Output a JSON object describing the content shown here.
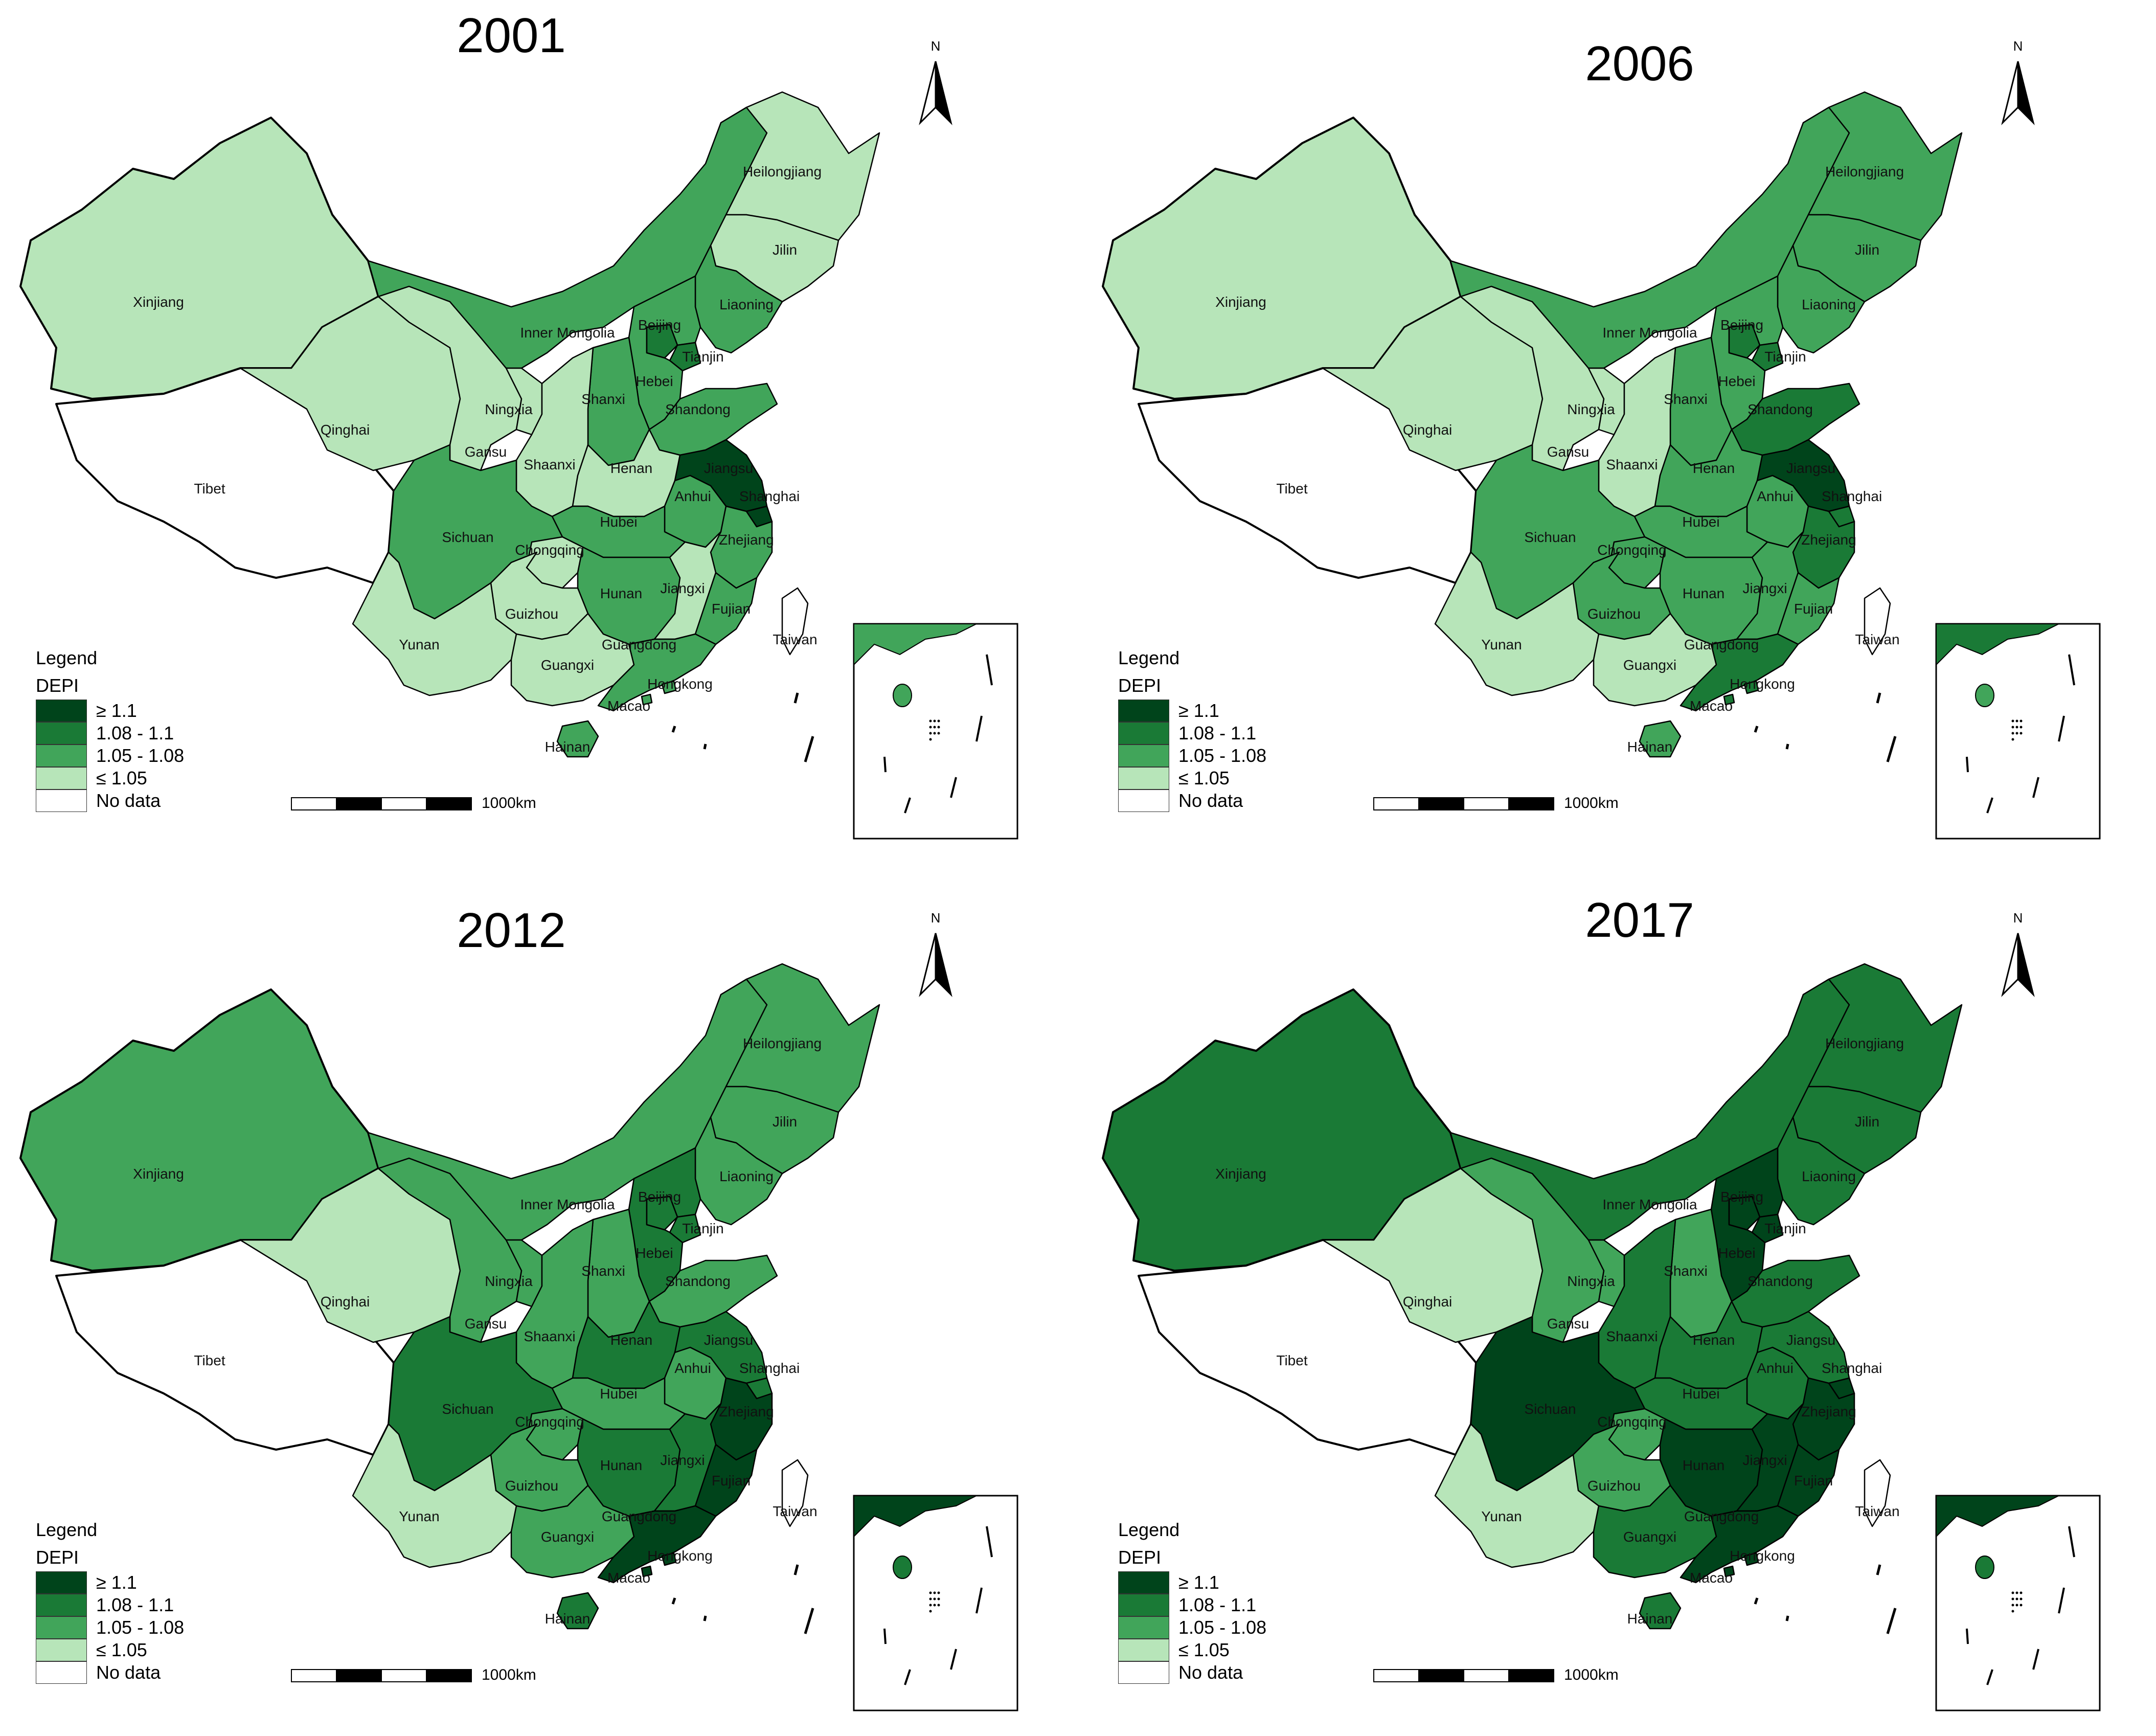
{
  "colors": {
    "c1": "#00441b",
    "c2": "#1a7a36",
    "c3": "#41a55a",
    "c4": "#b7e5b9",
    "nodata": "#ffffff",
    "stroke": "#000000"
  },
  "legend": {
    "title": "Legend",
    "subtitle": "DEPI",
    "classes": [
      {
        "label": "≥ 1.1",
        "class": "c1"
      },
      {
        "label": "1.08 - 1.1",
        "class": "c2"
      },
      {
        "label": "1.05 - 1.08",
        "class": "c3"
      },
      {
        "label": "≤ 1.05",
        "class": "c4"
      },
      {
        "label": "No data",
        "class": "nodata"
      }
    ]
  },
  "scale_label": "1000km",
  "north_label": "N",
  "provinces": [
    "Heilongjiang",
    "Jilin",
    "Liaoning",
    "Inner Mongolia",
    "Beijing",
    "Tianjin",
    "Hebei",
    "Shanxi",
    "Shandong",
    "Xinjiang",
    "Qinghai",
    "Tibet",
    "Ningxia",
    "Gansu",
    "Shaanxi",
    "Henan",
    "Jiangsu",
    "Anhui",
    "Shanghai",
    "Hubei",
    "Sichuan",
    "Chongqing",
    "Zhejiang",
    "Hunan",
    "Jiangxi",
    "Fujian",
    "Guizhou",
    "Yunan",
    "Guangxi",
    "Guangdong",
    "Taiwan",
    "Hongkong",
    "Macao",
    "Hainan"
  ],
  "panels": [
    {
      "year": "2001",
      "classes": {
        "Heilongjiang": "c4",
        "Jilin": "c4",
        "Liaoning": "c3",
        "Inner Mongolia": "c3",
        "Beijing": "c2",
        "Tianjin": "c2",
        "Hebei": "c3",
        "Shanxi": "c3",
        "Shandong": "c3",
        "Xinjiang": "c4",
        "Qinghai": "c4",
        "Tibet": "nodata",
        "Ningxia": "c4",
        "Gansu": "c4",
        "Shaanxi": "c4",
        "Henan": "c4",
        "Jiangsu": "c1",
        "Anhui": "c3",
        "Shanghai": "c1",
        "Hubei": "c3",
        "Sichuan": "c3",
        "Chongqing": "c4",
        "Zhejiang": "c3",
        "Hunan": "c3",
        "Jiangxi": "c4",
        "Fujian": "c3",
        "Guizhou": "c4",
        "Yunan": "c4",
        "Guangxi": "c4",
        "Guangdong": "c3",
        "Taiwan": "nodata",
        "Hongkong": "c3",
        "Macao": "c3",
        "Hainan": "c3"
      }
    },
    {
      "year": "2006",
      "classes": {
        "Heilongjiang": "c3",
        "Jilin": "c3",
        "Liaoning": "c3",
        "Inner Mongolia": "c3",
        "Beijing": "c2",
        "Tianjin": "c2",
        "Hebei": "c3",
        "Shanxi": "c3",
        "Shandong": "c2",
        "Xinjiang": "c4",
        "Qinghai": "c4",
        "Tibet": "nodata",
        "Ningxia": "c4",
        "Gansu": "c4",
        "Shaanxi": "c4",
        "Henan": "c3",
        "Jiangsu": "c1",
        "Anhui": "c3",
        "Shanghai": "c2",
        "Hubei": "c3",
        "Sichuan": "c3",
        "Chongqing": "c3",
        "Zhejiang": "c2",
        "Hunan": "c3",
        "Jiangxi": "c3",
        "Fujian": "c3",
        "Guizhou": "c3",
        "Yunan": "c4",
        "Guangxi": "c4",
        "Guangdong": "c2",
        "Taiwan": "nodata",
        "Hongkong": "c2",
        "Macao": "c2",
        "Hainan": "c3"
      }
    },
    {
      "year": "2012",
      "classes": {
        "Heilongjiang": "c3",
        "Jilin": "c3",
        "Liaoning": "c3",
        "Inner Mongolia": "c3",
        "Beijing": "c2",
        "Tianjin": "c2",
        "Hebei": "c2",
        "Shanxi": "c3",
        "Shandong": "c3",
        "Xinjiang": "c3",
        "Qinghai": "c4",
        "Tibet": "nodata",
        "Ningxia": "c3",
        "Gansu": "c3",
        "Shaanxi": "c3",
        "Henan": "c2",
        "Jiangsu": "c2",
        "Anhui": "c3",
        "Shanghai": "c2",
        "Hubei": "c3",
        "Sichuan": "c2",
        "Chongqing": "c3",
        "Zhejiang": "c1",
        "Hunan": "c2",
        "Jiangxi": "c2",
        "Fujian": "c1",
        "Guizhou": "c3",
        "Yunan": "c4",
        "Guangxi": "c3",
        "Guangdong": "c1",
        "Taiwan": "nodata",
        "Hongkong": "c1",
        "Macao": "c1",
        "Hainan": "c2"
      }
    },
    {
      "year": "2017",
      "classes": {
        "Heilongjiang": "c2",
        "Jilin": "c2",
        "Liaoning": "c2",
        "Inner Mongolia": "c2",
        "Beijing": "c1",
        "Tianjin": "c1",
        "Hebei": "c1",
        "Shanxi": "c3",
        "Shandong": "c2",
        "Xinjiang": "c2",
        "Qinghai": "c4",
        "Tibet": "nodata",
        "Ningxia": "c3",
        "Gansu": "c3",
        "Shaanxi": "c2",
        "Henan": "c2",
        "Jiangsu": "c2",
        "Anhui": "c2",
        "Shanghai": "c1",
        "Hubei": "c2",
        "Sichuan": "c1",
        "Chongqing": "c3",
        "Zhejiang": "c1",
        "Hunan": "c1",
        "Jiangxi": "c1",
        "Fujian": "c1",
        "Guizhou": "c3",
        "Yunan": "c4",
        "Guangxi": "c2",
        "Guangdong": "c1",
        "Taiwan": "nodata",
        "Hongkong": "c1",
        "Macao": "c1",
        "Hainan": "c2"
      }
    }
  ]
}
